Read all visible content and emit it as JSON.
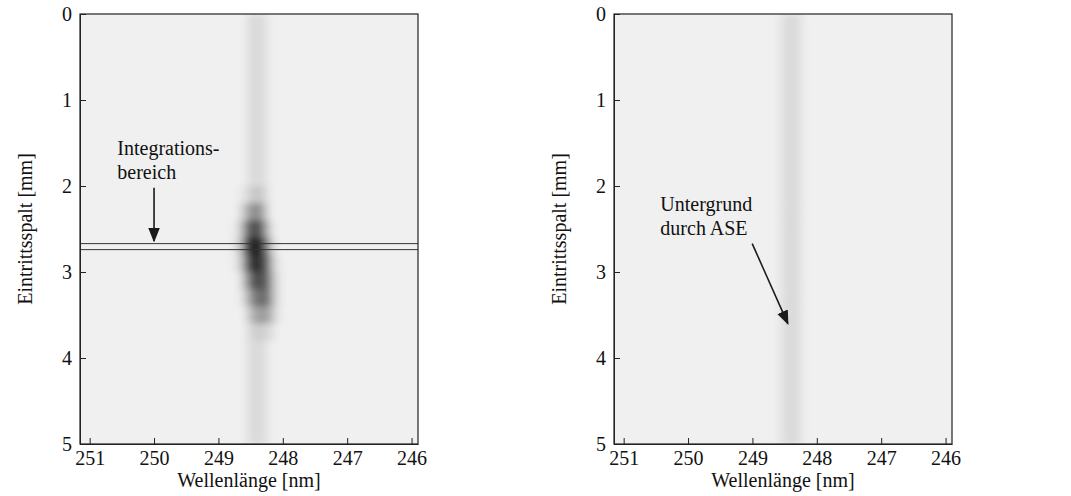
{
  "chart_data": [
    {
      "type": "heatmap",
      "x_label": "Wellenlänge [nm]",
      "y_label": "Eintrittsspalt [mm]",
      "xlim": [
        251.15,
        245.9
      ],
      "ylim": [
        0,
        5
      ],
      "xticks": [
        251,
        250,
        249,
        248,
        247,
        246
      ],
      "yticks": [
        0,
        1,
        2,
        3,
        4,
        5
      ],
      "x_edges": [
        249.0,
        248.9,
        248.8,
        248.7,
        248.6,
        248.5,
        248.4,
        248.3,
        248.2,
        248.1,
        248.0
      ],
      "y_edges": [
        0,
        0.5,
        1,
        1.5,
        2,
        2.2,
        2.4,
        2.6,
        2.8,
        3.0,
        3.2,
        3.4,
        3.6,
        3.8,
        4,
        4.5,
        5
      ],
      "zlim": [
        0,
        100
      ],
      "values": [
        [
          0,
          0,
          0,
          0,
          5,
          10,
          10,
          5,
          0,
          0
        ],
        [
          0,
          0,
          0,
          0,
          5,
          10,
          10,
          5,
          0,
          0
        ],
        [
          0,
          0,
          0,
          0,
          5,
          10,
          10,
          5,
          0,
          0
        ],
        [
          0,
          0,
          0,
          0,
          5,
          10,
          10,
          5,
          0,
          0
        ],
        [
          0,
          0,
          0,
          3,
          10,
          18,
          18,
          8,
          0,
          0
        ],
        [
          0,
          0,
          0,
          10,
          30,
          45,
          40,
          15,
          0,
          0
        ],
        [
          0,
          0,
          3,
          20,
          55,
          75,
          65,
          30,
          5,
          0
        ],
        [
          0,
          0,
          5,
          25,
          75,
          95,
          90,
          50,
          12,
          0
        ],
        [
          0,
          0,
          3,
          20,
          60,
          90,
          85,
          60,
          20,
          3
        ],
        [
          0,
          0,
          0,
          10,
          40,
          70,
          75,
          60,
          25,
          5
        ],
        [
          0,
          0,
          0,
          5,
          25,
          50,
          60,
          55,
          25,
          5
        ],
        [
          0,
          0,
          0,
          0,
          12,
          30,
          38,
          35,
          18,
          3
        ],
        [
          0,
          0,
          0,
          0,
          6,
          14,
          16,
          12,
          6,
          0
        ],
        [
          0,
          0,
          0,
          0,
          5,
          10,
          10,
          5,
          0,
          0
        ],
        [
          0,
          0,
          0,
          0,
          5,
          10,
          10,
          5,
          0,
          0
        ],
        [
          0,
          0,
          0,
          0,
          5,
          10,
          10,
          5,
          0,
          0
        ]
      ],
      "integration_band": [
        2.67,
        2.74
      ],
      "annotations": [
        {
          "text": [
            "Integrations-",
            "bereich"
          ],
          "x": 250.0,
          "y": 2.64,
          "xytext": [
            250.57,
            1.45
          ]
        }
      ]
    },
    {
      "type": "heatmap",
      "x_label": "Wellenlänge [nm]",
      "y_label": "Eintrittsspalt [mm]",
      "xlim": [
        251.15,
        245.9
      ],
      "ylim": [
        0,
        5
      ],
      "xticks": [
        251,
        250,
        249,
        248,
        247,
        246
      ],
      "yticks": [
        0,
        1,
        2,
        3,
        4,
        5
      ],
      "x_edges": [
        249.0,
        248.9,
        248.8,
        248.7,
        248.6,
        248.5,
        248.4,
        248.3,
        248.2,
        248.1,
        248.0
      ],
      "y_edges": [
        0,
        0.5,
        1,
        1.5,
        2,
        2.2,
        2.4,
        2.6,
        2.8,
        3.0,
        3.2,
        3.4,
        3.6,
        3.8,
        4,
        4.5,
        5
      ],
      "zlim": [
        0,
        100
      ],
      "values": [
        [
          0,
          0,
          0,
          0,
          5,
          10,
          10,
          5,
          0,
          0
        ],
        [
          0,
          0,
          0,
          0,
          5,
          10,
          10,
          5,
          0,
          0
        ],
        [
          0,
          0,
          0,
          0,
          5,
          10,
          10,
          5,
          0,
          0
        ],
        [
          0,
          0,
          0,
          0,
          5,
          10,
          10,
          5,
          0,
          0
        ],
        [
          0,
          0,
          0,
          0,
          5,
          10,
          10,
          5,
          0,
          0
        ],
        [
          0,
          0,
          0,
          0,
          5,
          10,
          10,
          5,
          0,
          0
        ],
        [
          0,
          0,
          0,
          0,
          5,
          10,
          10,
          5,
          0,
          0
        ],
        [
          0,
          0,
          0,
          0,
          5,
          10,
          10,
          5,
          0,
          0
        ],
        [
          0,
          0,
          0,
          0,
          5,
          10,
          10,
          5,
          0,
          0
        ],
        [
          0,
          0,
          0,
          0,
          5,
          10,
          10,
          5,
          0,
          0
        ],
        [
          0,
          0,
          0,
          0,
          5,
          10,
          10,
          5,
          0,
          0
        ],
        [
          0,
          0,
          0,
          0,
          5,
          10,
          10,
          5,
          0,
          0
        ],
        [
          0,
          0,
          0,
          0,
          5,
          10,
          10,
          5,
          0,
          0
        ],
        [
          0,
          0,
          0,
          0,
          5,
          10,
          10,
          5,
          0,
          0
        ],
        [
          0,
          0,
          0,
          0,
          5,
          10,
          10,
          5,
          0,
          0
        ],
        [
          0,
          0,
          0,
          0,
          5,
          10,
          10,
          5,
          0,
          0
        ]
      ],
      "annotations": [
        {
          "text": [
            "Untergrund",
            "durch ASE"
          ],
          "x": 248.45,
          "y": 3.6,
          "xytext": [
            250.43,
            2.1
          ]
        }
      ]
    }
  ]
}
